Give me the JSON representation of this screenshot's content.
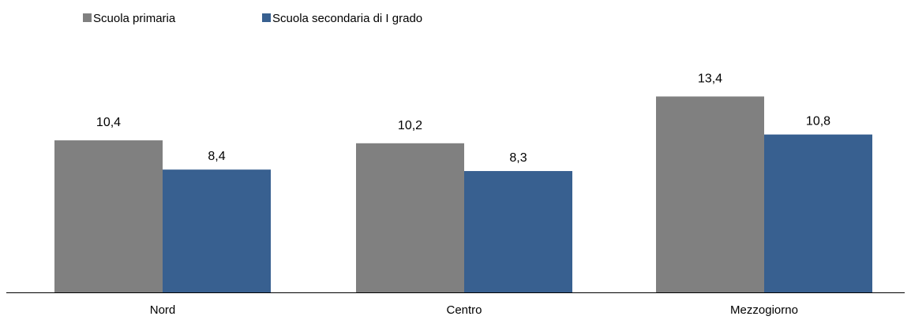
{
  "chart_data": {
    "type": "bar",
    "categories": [
      "Nord",
      "Centro",
      "Mezzogiorno"
    ],
    "series": [
      {
        "name": "Scuola primaria",
        "values": [
          10.4,
          10.2,
          13.4
        ],
        "labels": [
          "10,4",
          "10,2",
          "13,4"
        ]
      },
      {
        "name": "Scuola secondaria di I grado",
        "values": [
          8.4,
          8.3,
          10.8
        ],
        "labels": [
          "8,4",
          "8,3",
          "10,8"
        ]
      }
    ],
    "ylim": [
      0,
      16
    ],
    "grid": false,
    "legend_position": "top-left",
    "title": "",
    "xlabel": "",
    "ylabel": ""
  },
  "colors": {
    "series": [
      "#808080",
      "#386090"
    ],
    "axis": "#000000"
  }
}
